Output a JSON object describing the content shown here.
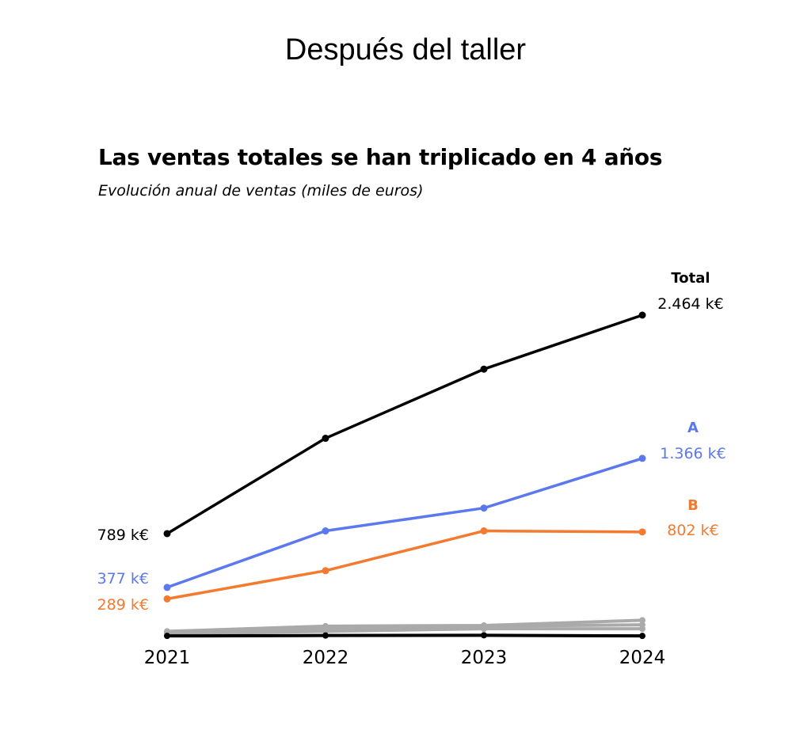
{
  "page": {
    "title": "Después del taller"
  },
  "chart_data": {
    "type": "line",
    "title": "Las ventas totales se han triplicado en 4 años",
    "subtitle": "Evolución anual de ventas (miles de euros)",
    "xlabel": "",
    "ylabel": "",
    "x": [
      "2021",
      "2022",
      "2023",
      "2024"
    ],
    "ylim": [
      0,
      2464
    ],
    "grid": false,
    "series": [
      {
        "name": "Total",
        "values": [
          789,
          1520,
          2050,
          2464
        ],
        "color": "#000000",
        "highlight": true,
        "start_label": "789 k€",
        "end_label": "2.464 k€"
      },
      {
        "name": "A",
        "values": [
          377,
          810,
          985,
          1366
        ],
        "color": "#5b78ef",
        "highlight": true,
        "start_label": "377 k€",
        "end_label": "1.366 k€"
      },
      {
        "name": "B",
        "values": [
          289,
          505,
          810,
          802
        ],
        "color": "#f47a2f",
        "highlight": true,
        "start_label": "289 k€",
        "end_label": "802 k€"
      },
      {
        "values": [
          40,
          80,
          85,
          125
        ],
        "color": "#aaaaaa",
        "highlight": false
      },
      {
        "values": [
          30,
          60,
          80,
          90
        ],
        "color": "#aaaaaa",
        "highlight": false
      },
      {
        "values": [
          20,
          40,
          60,
          60
        ],
        "color": "#aaaaaa",
        "highlight": false
      },
      {
        "values": [
          5,
          8,
          10,
          5
        ],
        "color": "#000000",
        "highlight": false
      }
    ]
  }
}
